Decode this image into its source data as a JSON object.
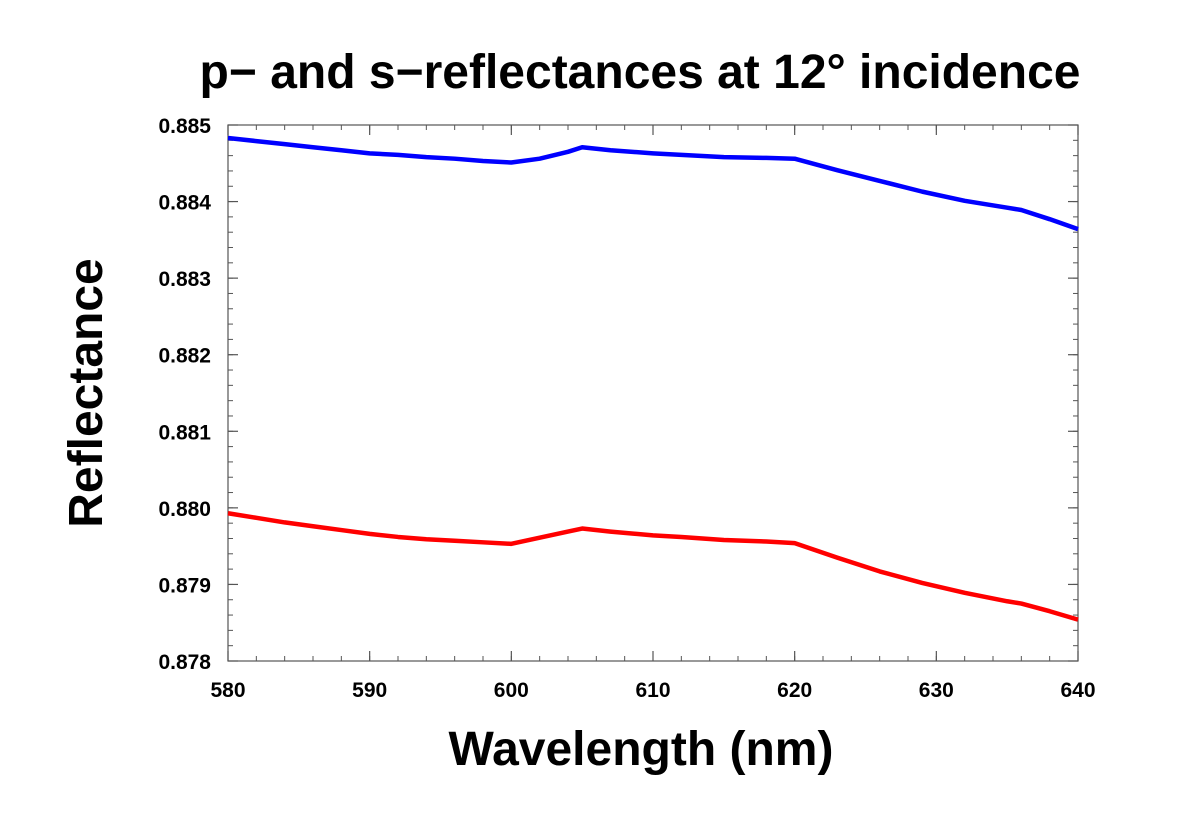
{
  "chart_data": {
    "type": "line",
    "title": "p− and s−reflectances at 12° incidence",
    "xlabel": "Wavelength (nm)",
    "ylabel": "Reflectance",
    "xlim": [
      580,
      640
    ],
    "ylim": [
      0.878,
      0.885
    ],
    "xticks": [
      "580",
      "590",
      "600",
      "610",
      "620",
      "630",
      "640"
    ],
    "yticks": [
      "0.878",
      "0.879",
      "0.880",
      "0.881",
      "0.882",
      "0.883",
      "0.884",
      "0.885"
    ],
    "grid": false,
    "legend": "none",
    "series": [
      {
        "color": "#0000ff",
        "x": [
          580,
          582,
          584,
          586,
          588,
          590,
          592,
          594,
          596,
          598,
          600,
          602,
          604,
          605,
          607,
          610,
          612,
          615,
          618,
          620,
          623,
          626,
          629,
          632,
          635,
          636,
          638,
          640
        ],
        "y": [
          0.88483,
          0.88479,
          0.88475,
          0.88471,
          0.88467,
          0.88463,
          0.88461,
          0.88458,
          0.88456,
          0.88453,
          0.88451,
          0.88456,
          0.88465,
          0.88471,
          0.88467,
          0.88463,
          0.88461,
          0.88458,
          0.88457,
          0.88456,
          0.88441,
          0.88427,
          0.88413,
          0.88401,
          0.88392,
          0.88389,
          0.88377,
          0.88364
        ]
      },
      {
        "color": "#ff0000",
        "x": [
          580,
          582,
          584,
          586,
          588,
          590,
          592,
          594,
          596,
          598,
          600,
          602,
          604,
          605,
          607,
          610,
          612,
          615,
          618,
          620,
          623,
          626,
          629,
          632,
          635,
          636,
          638,
          640
        ],
        "y": [
          0.87993,
          0.87987,
          0.87981,
          0.87976,
          0.87971,
          0.87966,
          0.87962,
          0.87959,
          0.87957,
          0.87955,
          0.87953,
          0.87961,
          0.87969,
          0.87973,
          0.87969,
          0.87964,
          0.87962,
          0.87958,
          0.87956,
          0.87954,
          0.87935,
          0.87917,
          0.87902,
          0.87889,
          0.87878,
          0.87875,
          0.87865,
          0.87854
        ]
      }
    ]
  }
}
